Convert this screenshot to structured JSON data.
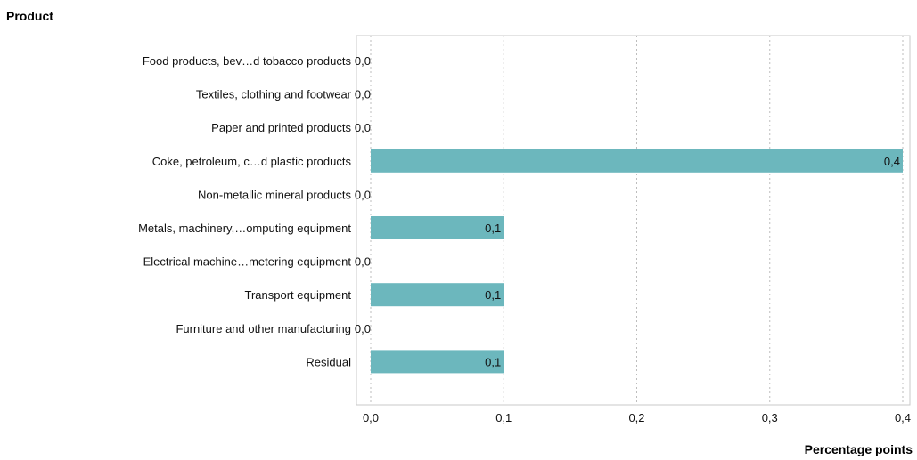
{
  "chart_data": {
    "type": "bar",
    "orientation": "horizontal",
    "ytitle": "Product",
    "xlabel": "Percentage points",
    "categories": [
      "Food products, bev…d tobacco products",
      "Textiles, clothing and footwear",
      "Paper and printed products",
      "Coke, petroleum, c…d plastic products",
      "Non-metallic mineral products",
      "Metals, machinery,…omputing equipment",
      "Electrical machine…metering equipment",
      "Transport equipment",
      "Furniture and other manufacturing",
      "Residual"
    ],
    "values": [
      0.0,
      0.0,
      0.0,
      0.4,
      0.0,
      0.1,
      0.0,
      0.1,
      0.0,
      0.1
    ],
    "value_labels": [
      "0,0",
      "0,0",
      "0,0",
      "0,4",
      "0,0",
      "0,1",
      "0,0",
      "0,1",
      "0,0",
      "0,1"
    ],
    "xlim": [
      0,
      0.4
    ],
    "xticks": [
      0,
      0.1,
      0.2,
      0.3,
      0.4
    ],
    "xtick_labels": [
      "0,0",
      "0,1",
      "0,2",
      "0,3",
      "0,4"
    ],
    "grid": "vertical-dotted",
    "bar_color": "#6cb7bd"
  }
}
